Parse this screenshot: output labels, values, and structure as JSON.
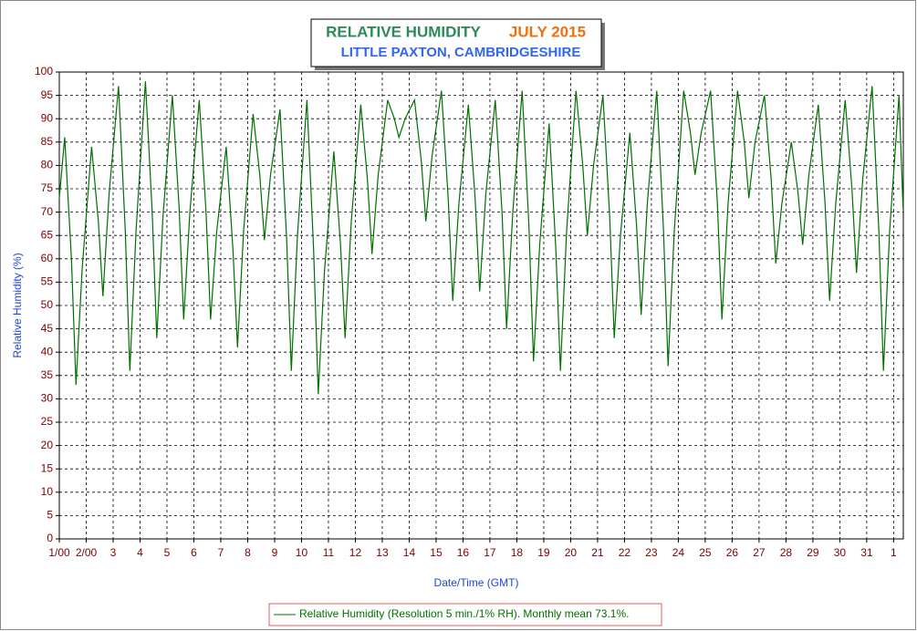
{
  "chart_data": {
    "type": "line",
    "title": "RELATIVE HUMIDITY",
    "title_period": "JULY 2015",
    "subtitle": "LITTLE PAXTON, CAMBRIDGESHIRE",
    "x_label": "Date/Time (GMT)",
    "y_label": "Relative Humidity (%)",
    "xlim": [
      1,
      32.36
    ],
    "ylim": [
      0,
      100
    ],
    "xticks": [
      {
        "value": 1,
        "label": "1/00"
      },
      {
        "value": 2,
        "label": "2/00"
      },
      3,
      4,
      5,
      6,
      7,
      8,
      9,
      10,
      11,
      12,
      13,
      14,
      15,
      16,
      17,
      18,
      19,
      20,
      21,
      22,
      23,
      24,
      25,
      26,
      27,
      28,
      29,
      30,
      31,
      {
        "value": 32,
        "label": "1"
      }
    ],
    "yticks": [
      0,
      5,
      10,
      15,
      20,
      25,
      30,
      35,
      40,
      45,
      50,
      55,
      60,
      65,
      70,
      75,
      80,
      85,
      90,
      95,
      100
    ],
    "grid": true,
    "legend": "bottom",
    "x": [
      1,
      1.2,
      1.45,
      1.62,
      1.85,
      2.2,
      2.45,
      2.62,
      2.85,
      3.2,
      3.45,
      3.62,
      3.85,
      4.2,
      4.45,
      4.62,
      4.85,
      5.2,
      5.45,
      5.62,
      5.85,
      6.2,
      6.45,
      6.62,
      6.85,
      7.2,
      7.45,
      7.62,
      7.85,
      8.2,
      8.45,
      8.62,
      8.85,
      9.2,
      9.45,
      9.62,
      9.85,
      10.2,
      10.45,
      10.62,
      10.85,
      11.2,
      11.45,
      11.62,
      11.85,
      12.2,
      12.45,
      12.62,
      12.85,
      13.2,
      13.45,
      13.62,
      13.85,
      14.2,
      14.45,
      14.62,
      14.85,
      15.2,
      15.45,
      15.62,
      15.85,
      16.2,
      16.45,
      16.62,
      16.85,
      17.2,
      17.45,
      17.62,
      17.85,
      18.2,
      18.45,
      18.62,
      18.85,
      19.2,
      19.45,
      19.62,
      19.85,
      20.2,
      20.45,
      20.62,
      20.85,
      21.2,
      21.45,
      21.62,
      21.85,
      22.2,
      22.45,
      22.62,
      22.85,
      23.2,
      23.45,
      23.62,
      23.85,
      24.2,
      24.45,
      24.62,
      24.85,
      25.2,
      25.45,
      25.62,
      25.85,
      26.2,
      26.45,
      26.62,
      26.85,
      27.2,
      27.45,
      27.62,
      27.85,
      28.2,
      28.45,
      28.62,
      28.85,
      29.2,
      29.45,
      29.62,
      29.85,
      30.2,
      30.45,
      30.62,
      30.85,
      31.2,
      31.45,
      31.62,
      31.85,
      32.2,
      32.35
    ],
    "series": [
      {
        "name": "Relative Humidity (Resolution 5 min./1% RH). Monthly mean 73.1%.",
        "color": "#007000",
        "values": [
          73,
          86,
          60,
          33,
          58,
          84,
          68,
          52,
          74,
          97,
          66,
          36,
          66,
          98,
          70,
          43,
          69,
          95,
          71,
          47,
          70,
          94,
          70,
          47,
          66,
          84,
          62,
          41,
          66,
          91,
          78,
          64,
          78,
          92,
          64,
          36,
          65,
          94,
          62,
          31,
          57,
          83,
          63,
          43,
          68,
          93,
          77,
          61,
          78,
          94,
          90,
          86,
          90,
          94,
          81,
          68,
          82,
          96,
          73,
          51,
          72,
          93,
          73,
          53,
          74,
          94,
          70,
          45,
          70,
          96,
          67,
          38,
          63,
          89,
          62,
          36,
          66,
          96,
          80,
          65,
          80,
          95,
          69,
          43,
          65,
          87,
          67,
          48,
          72,
          96,
          66,
          37,
          66,
          96,
          87,
          78,
          87,
          96,
          72,
          47,
          72,
          96,
          85,
          73,
          85,
          95,
          77,
          59,
          72,
          85,
          74,
          63,
          78,
          93,
          72,
          51,
          72,
          94,
          75,
          57,
          77,
          97,
          66,
          36,
          66,
          95,
          71
        ]
      }
    ]
  }
}
